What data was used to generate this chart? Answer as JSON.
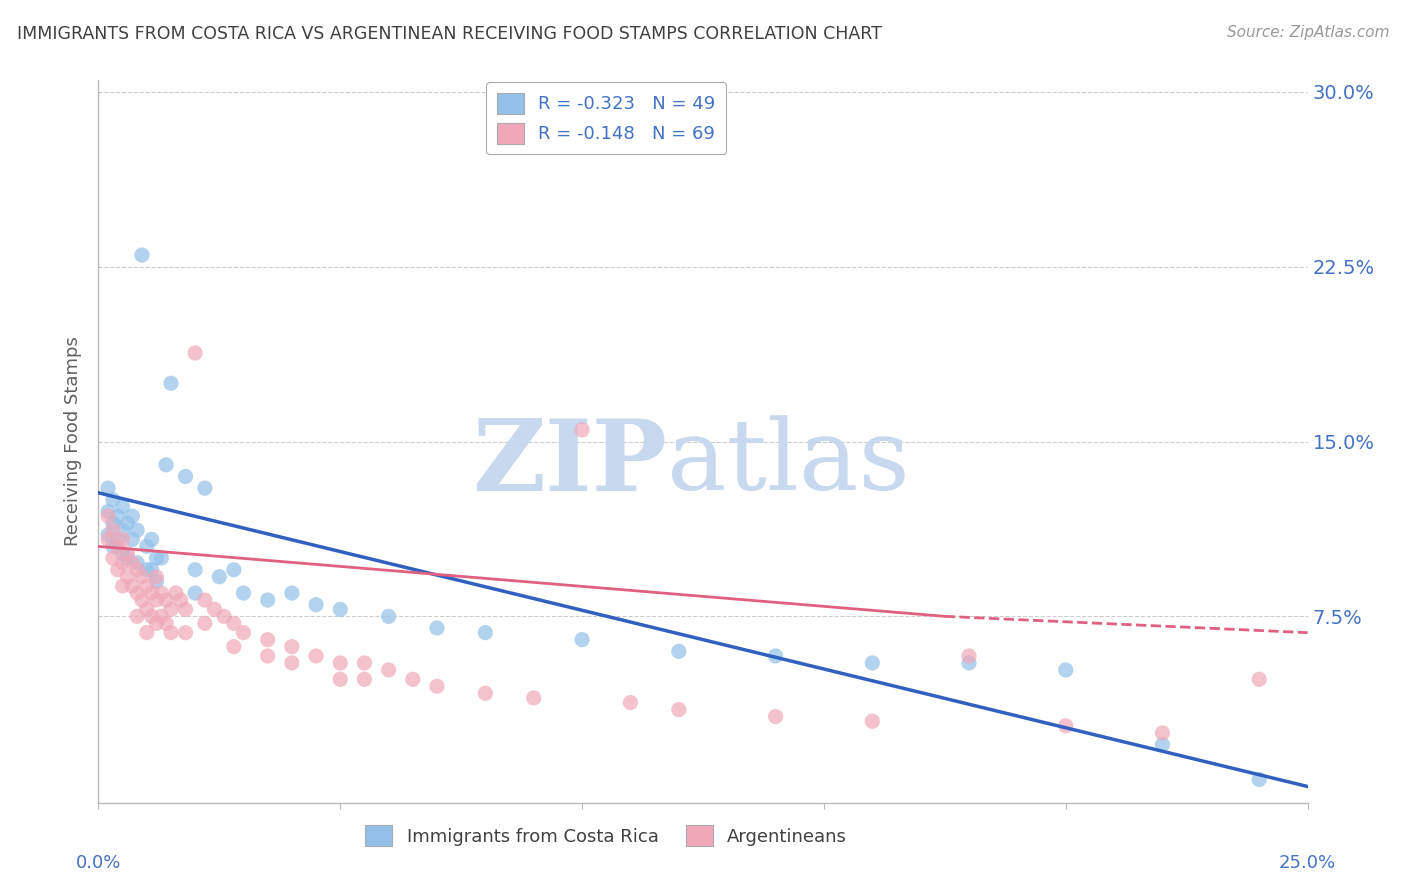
{
  "title": "IMMIGRANTS FROM COSTA RICA VS ARGENTINEAN RECEIVING FOOD STAMPS CORRELATION CHART",
  "source": "Source: ZipAtlas.com",
  "ylabel": "Receiving Food Stamps",
  "y_ticks_right": [
    0.0,
    0.075,
    0.15,
    0.225,
    0.3
  ],
  "y_tick_labels_right": [
    "",
    "7.5%",
    "15.0%",
    "22.5%",
    "30.0%"
  ],
  "x_range": [
    0.0,
    0.25
  ],
  "y_range": [
    -0.005,
    0.305
  ],
  "legend1_label": "R = -0.323   N = 49",
  "legend2_label": "R = -0.148   N = 69",
  "legend_xlabel": "Immigrants from Costa Rica",
  "legend_ylabel": "Argentineans",
  "blue_color": "#92c0e8",
  "pink_color": "#f0a8b8",
  "blue_line_color": "#3060c0",
  "pink_line_color": "#e06080",
  "title_color": "#404040",
  "axis_label_color": "#4472c4",
  "blue_scatter": [
    [
      0.002,
      0.12
    ],
    [
      0.002,
      0.13
    ],
    [
      0.002,
      0.11
    ],
    [
      0.003,
      0.125
    ],
    [
      0.003,
      0.115
    ],
    [
      0.003,
      0.105
    ],
    [
      0.004,
      0.118
    ],
    [
      0.004,
      0.108
    ],
    [
      0.005,
      0.122
    ],
    [
      0.005,
      0.112
    ],
    [
      0.005,
      0.102
    ],
    [
      0.006,
      0.115
    ],
    [
      0.006,
      0.1
    ],
    [
      0.007,
      0.108
    ],
    [
      0.007,
      0.118
    ],
    [
      0.008,
      0.112
    ],
    [
      0.008,
      0.098
    ],
    [
      0.009,
      0.23
    ],
    [
      0.01,
      0.105
    ],
    [
      0.01,
      0.095
    ],
    [
      0.011,
      0.095
    ],
    [
      0.011,
      0.108
    ],
    [
      0.012,
      0.1
    ],
    [
      0.012,
      0.09
    ],
    [
      0.013,
      0.1
    ],
    [
      0.014,
      0.14
    ],
    [
      0.015,
      0.175
    ],
    [
      0.018,
      0.135
    ],
    [
      0.02,
      0.095
    ],
    [
      0.02,
      0.085
    ],
    [
      0.022,
      0.13
    ],
    [
      0.025,
      0.092
    ],
    [
      0.028,
      0.095
    ],
    [
      0.03,
      0.085
    ],
    [
      0.035,
      0.082
    ],
    [
      0.04,
      0.085
    ],
    [
      0.045,
      0.08
    ],
    [
      0.05,
      0.078
    ],
    [
      0.06,
      0.075
    ],
    [
      0.07,
      0.07
    ],
    [
      0.08,
      0.068
    ],
    [
      0.1,
      0.065
    ],
    [
      0.12,
      0.06
    ],
    [
      0.14,
      0.058
    ],
    [
      0.16,
      0.055
    ],
    [
      0.18,
      0.055
    ],
    [
      0.2,
      0.052
    ],
    [
      0.22,
      0.02
    ],
    [
      0.24,
      0.005
    ]
  ],
  "pink_scatter": [
    [
      0.002,
      0.118
    ],
    [
      0.002,
      0.108
    ],
    [
      0.003,
      0.112
    ],
    [
      0.003,
      0.1
    ],
    [
      0.004,
      0.105
    ],
    [
      0.004,
      0.095
    ],
    [
      0.005,
      0.108
    ],
    [
      0.005,
      0.098
    ],
    [
      0.005,
      0.088
    ],
    [
      0.006,
      0.102
    ],
    [
      0.006,
      0.092
    ],
    [
      0.007,
      0.098
    ],
    [
      0.007,
      0.088
    ],
    [
      0.008,
      0.095
    ],
    [
      0.008,
      0.085
    ],
    [
      0.008,
      0.075
    ],
    [
      0.009,
      0.092
    ],
    [
      0.009,
      0.082
    ],
    [
      0.01,
      0.088
    ],
    [
      0.01,
      0.078
    ],
    [
      0.01,
      0.068
    ],
    [
      0.011,
      0.085
    ],
    [
      0.011,
      0.075
    ],
    [
      0.012,
      0.092
    ],
    [
      0.012,
      0.082
    ],
    [
      0.012,
      0.072
    ],
    [
      0.013,
      0.085
    ],
    [
      0.013,
      0.075
    ],
    [
      0.014,
      0.082
    ],
    [
      0.014,
      0.072
    ],
    [
      0.015,
      0.078
    ],
    [
      0.015,
      0.068
    ],
    [
      0.016,
      0.085
    ],
    [
      0.017,
      0.082
    ],
    [
      0.018,
      0.078
    ],
    [
      0.018,
      0.068
    ],
    [
      0.02,
      0.188
    ],
    [
      0.022,
      0.082
    ],
    [
      0.022,
      0.072
    ],
    [
      0.024,
      0.078
    ],
    [
      0.026,
      0.075
    ],
    [
      0.028,
      0.072
    ],
    [
      0.028,
      0.062
    ],
    [
      0.03,
      0.068
    ],
    [
      0.035,
      0.065
    ],
    [
      0.035,
      0.058
    ],
    [
      0.04,
      0.062
    ],
    [
      0.04,
      0.055
    ],
    [
      0.045,
      0.058
    ],
    [
      0.05,
      0.055
    ],
    [
      0.05,
      0.048
    ],
    [
      0.055,
      0.055
    ],
    [
      0.055,
      0.048
    ],
    [
      0.06,
      0.052
    ],
    [
      0.065,
      0.048
    ],
    [
      0.07,
      0.045
    ],
    [
      0.08,
      0.042
    ],
    [
      0.09,
      0.04
    ],
    [
      0.1,
      0.155
    ],
    [
      0.11,
      0.038
    ],
    [
      0.12,
      0.035
    ],
    [
      0.14,
      0.032
    ],
    [
      0.16,
      0.03
    ],
    [
      0.18,
      0.058
    ],
    [
      0.2,
      0.028
    ],
    [
      0.22,
      0.025
    ],
    [
      0.24,
      0.048
    ]
  ],
  "blue_line": [
    [
      0.0,
      0.128
    ],
    [
      0.25,
      0.002
    ]
  ],
  "pink_line_solid": [
    [
      0.0,
      0.105
    ],
    [
      0.175,
      0.075
    ]
  ],
  "pink_line_dashed": [
    [
      0.175,
      0.075
    ],
    [
      0.25,
      0.068
    ]
  ]
}
